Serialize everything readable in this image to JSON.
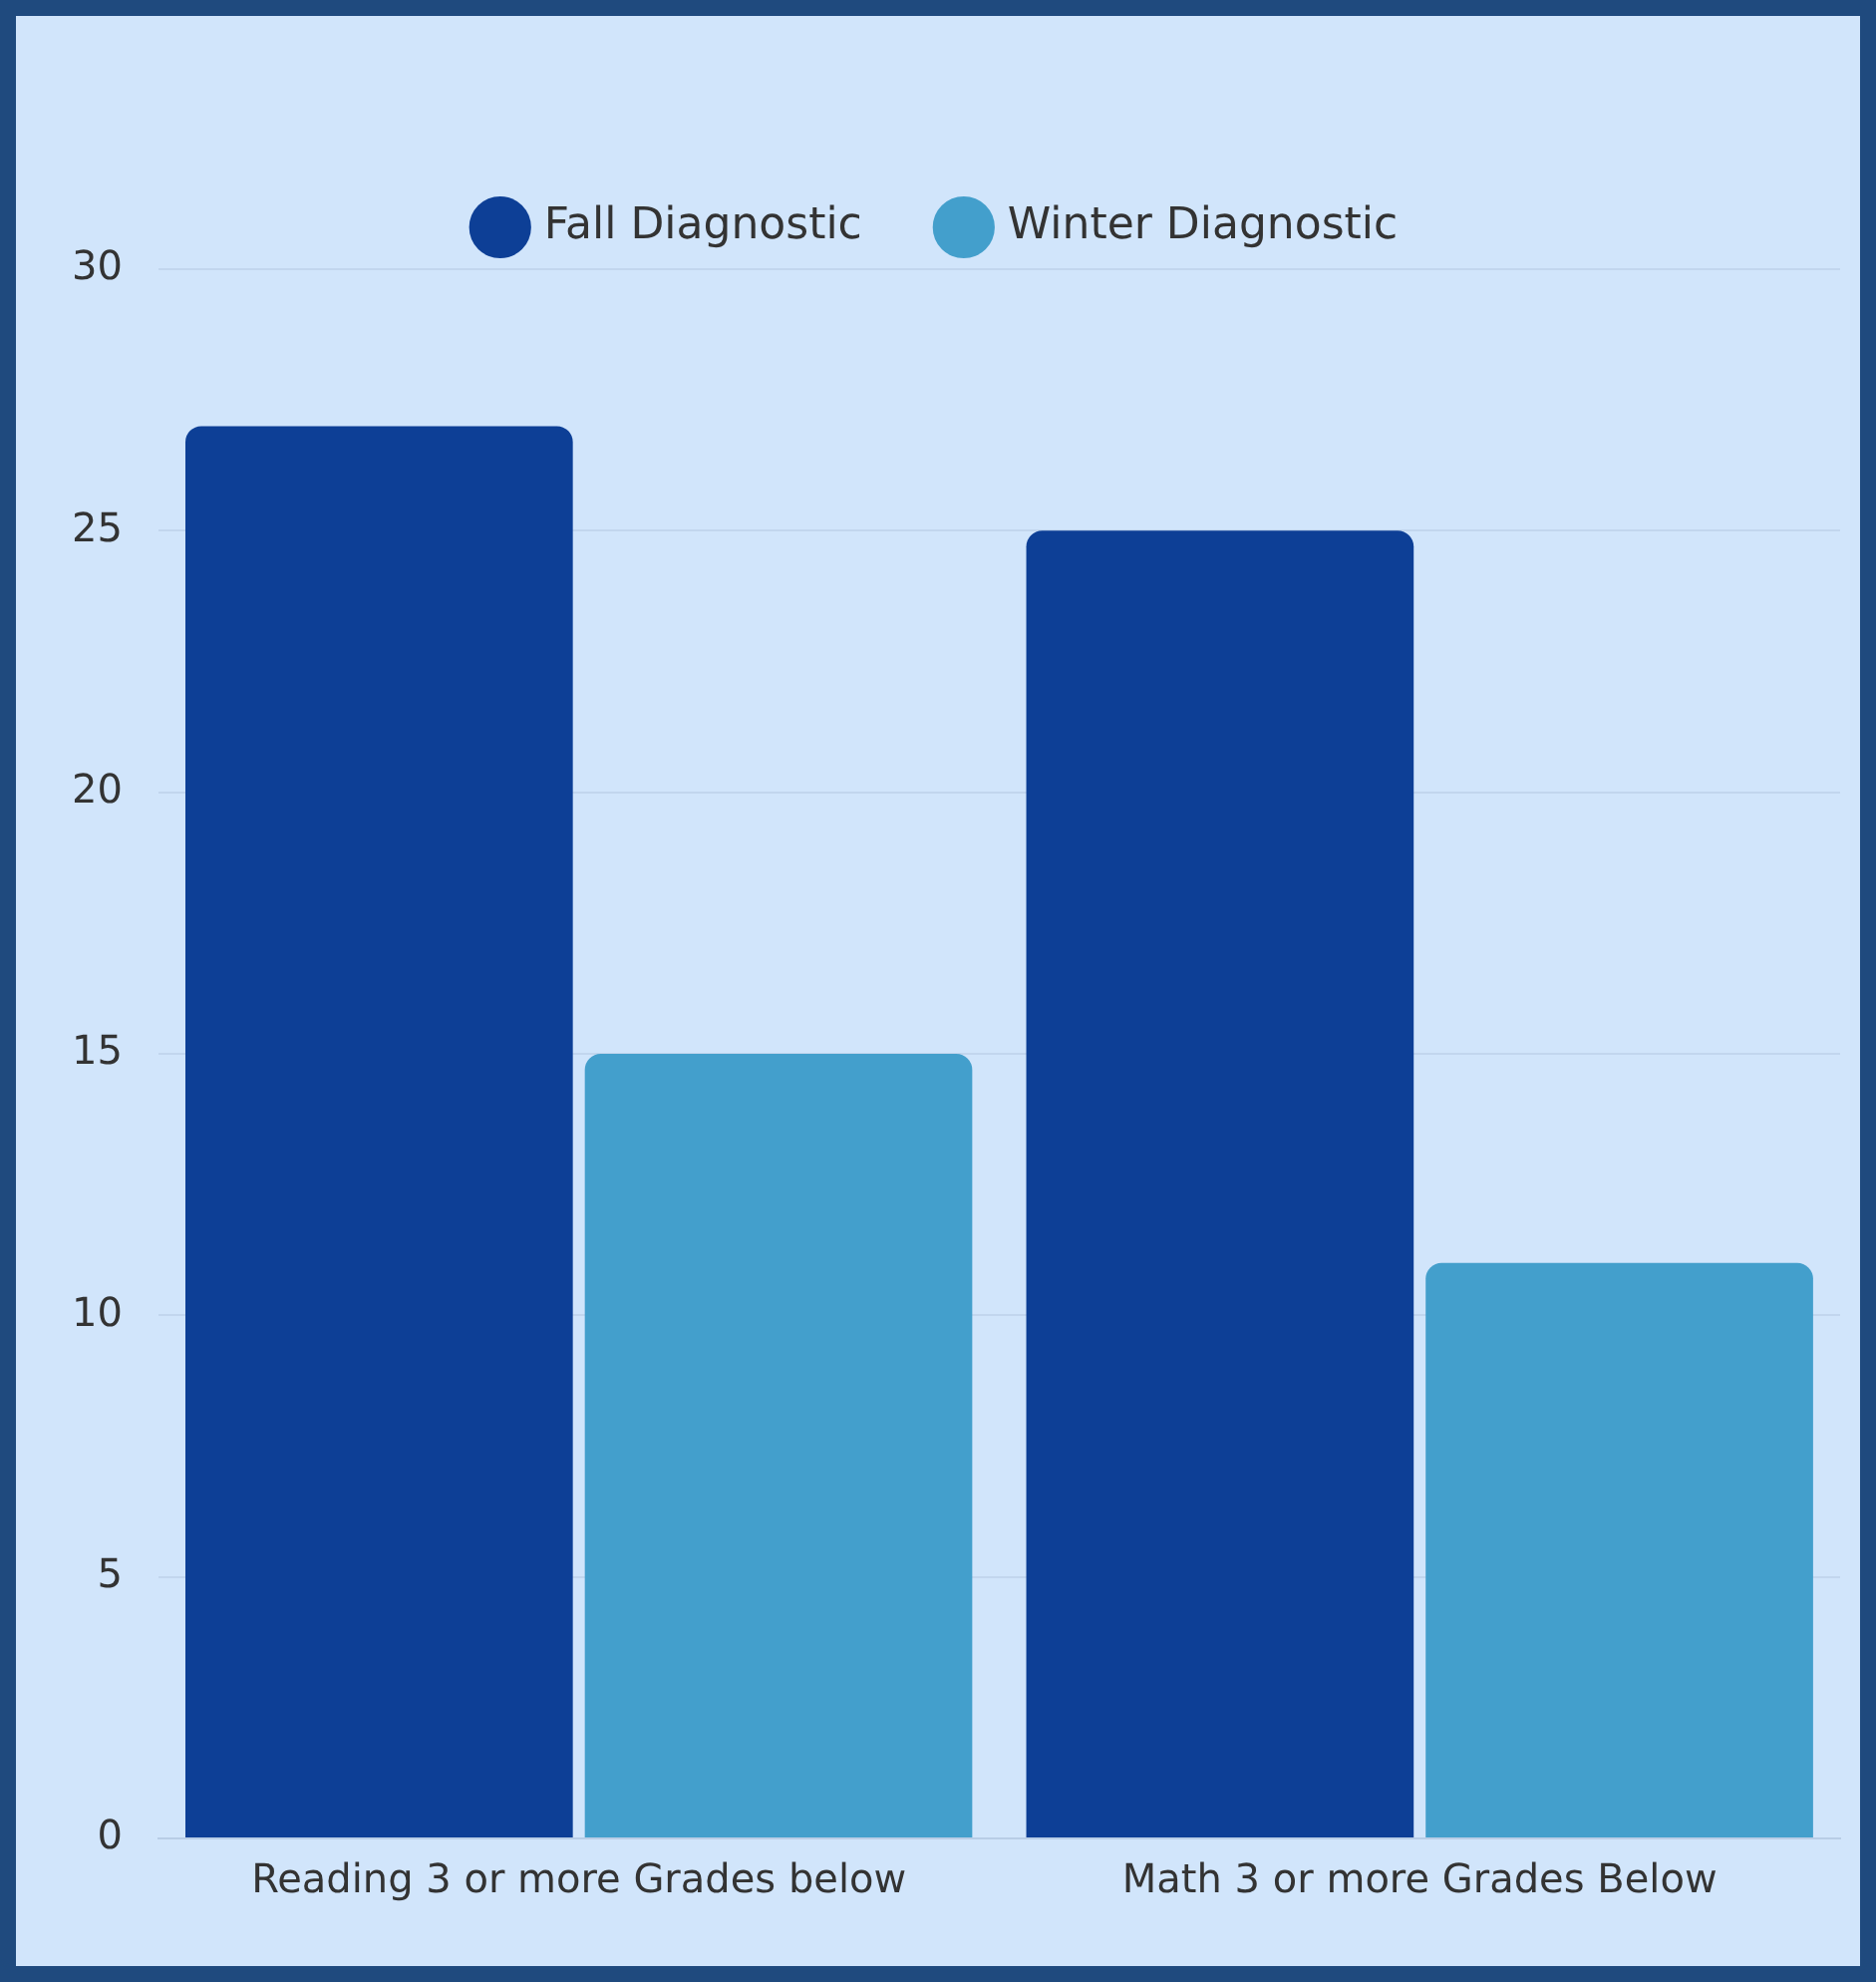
{
  "chart_data": {
    "type": "bar",
    "categories": [
      "Reading 3 or more Grades below",
      "Math 3 or more Grades Below"
    ],
    "series": [
      {
        "name": "Fall Diagnostic",
        "color": "#0d3f96",
        "values": [
          27,
          25
        ]
      },
      {
        "name": "Winter Diagnostic",
        "color": "#439fcc",
        "values": [
          15,
          11
        ]
      }
    ],
    "ylim": [
      0,
      30
    ],
    "yticks": [
      0,
      5,
      10,
      15,
      20,
      25,
      30
    ],
    "grid": "y",
    "legend": "top"
  }
}
